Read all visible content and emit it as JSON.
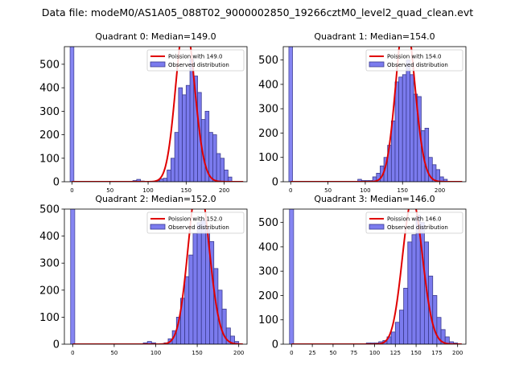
{
  "figure": {
    "suptitle": "Data file: modeM0/AS1A05_088T02_9000002850_19266cztM0_level2_quad_clean.evt",
    "colors": {
      "bars": "#7b7bee",
      "bar_edge": "#3b3b8e",
      "curve": "#e00000"
    }
  },
  "chart_data": [
    {
      "type": "bar",
      "title": "Quadrant 0: Median=149.0",
      "median": 149.0,
      "legend": [
        "Poission with 149.0",
        "Observed distribution"
      ],
      "legend_loc": "upper right",
      "xlim": [
        -10,
        230
      ],
      "ylim": [
        0,
        575
      ],
      "xticks": [
        0,
        50,
        100,
        150,
        200
      ],
      "yticks": [
        0,
        100,
        200,
        300,
        400,
        500
      ],
      "spike": {
        "x": 0,
        "value": 575
      },
      "bin_edges": [
        110,
        115,
        120,
        125,
        130,
        135,
        140,
        145,
        150,
        155,
        160,
        165,
        170,
        175,
        180,
        185,
        190,
        195,
        200,
        205,
        210
      ],
      "values": [
        5,
        12,
        15,
        50,
        100,
        210,
        400,
        370,
        410,
        520,
        450,
        380,
        265,
        300,
        210,
        200,
        120,
        100,
        50,
        20,
        10
      ],
      "low_counts": [
        [
          80,
          5
        ],
        [
          85,
          10
        ],
        [
          90,
          3
        ]
      ]
    },
    {
      "type": "bar",
      "title": "Quadrant 1: Median=154.0",
      "median": 154.0,
      "legend": [
        "Poission with 154.0",
        "Observed distribution"
      ],
      "legend_loc": "upper right",
      "xlim": [
        -10,
        235
      ],
      "ylim": [
        0,
        555
      ],
      "xticks": [
        0,
        50,
        100,
        150,
        200
      ],
      "yticks": [
        0,
        100,
        200,
        300,
        400,
        500
      ],
      "spike": {
        "x": 0,
        "value": 555
      },
      "bin_edges": [
        90,
        95,
        100,
        105,
        110,
        115,
        120,
        125,
        130,
        135,
        140,
        145,
        150,
        155,
        160,
        165,
        170,
        175,
        180,
        185,
        190,
        195,
        200,
        205,
        210
      ],
      "values": [
        10,
        5,
        5,
        5,
        20,
        35,
        65,
        100,
        150,
        250,
        410,
        430,
        440,
        500,
        440,
        360,
        350,
        210,
        220,
        100,
        70,
        50,
        20,
        10
      ],
      "low_counts": []
    },
    {
      "type": "bar",
      "title": "Quadrant 2: Median=152.0",
      "median": 152.0,
      "legend": [
        "Poission with 152.0",
        "Observed distribution"
      ],
      "legend_loc": "upper right",
      "xlim": [
        -10,
        210
      ],
      "ylim": [
        0,
        500
      ],
      "xticks": [
        0,
        50,
        100,
        150,
        200
      ],
      "yticks": [
        0,
        100,
        200,
        300,
        400,
        500
      ],
      "spike": {
        "x": 0,
        "value": 500
      },
      "bin_edges": [
        110,
        115,
        120,
        125,
        130,
        135,
        140,
        145,
        150,
        155,
        160,
        165,
        170,
        175,
        180,
        185,
        190,
        195,
        200
      ],
      "values": [
        5,
        20,
        50,
        100,
        170,
        250,
        330,
        410,
        450,
        460,
        430,
        380,
        280,
        200,
        130,
        60,
        30,
        10
      ],
      "low_counts": [
        [
          85,
          5
        ],
        [
          90,
          10
        ],
        [
          95,
          5
        ]
      ]
    },
    {
      "type": "bar",
      "title": "Quadrant 3: Median=146.0",
      "median": 146.0,
      "legend": [
        "Poission with 146.0",
        "Observed distribution"
      ],
      "legend_loc": "upper right",
      "xlim": [
        -10,
        210
      ],
      "ylim": [
        0,
        555
      ],
      "xticks": [
        0,
        25,
        50,
        75,
        100,
        125,
        150,
        175,
        200
      ],
      "yticks": [
        0,
        100,
        200,
        300,
        400,
        500
      ],
      "spike": {
        "x": 0,
        "value": 555
      },
      "bin_edges": [
        90,
        95,
        100,
        105,
        110,
        115,
        120,
        125,
        130,
        135,
        140,
        145,
        150,
        155,
        160,
        165,
        170,
        175,
        180,
        185,
        190,
        195,
        200
      ],
      "values": [
        5,
        5,
        5,
        10,
        15,
        30,
        50,
        90,
        140,
        230,
        420,
        450,
        530,
        500,
        420,
        280,
        200,
        110,
        60,
        30,
        10,
        5
      ],
      "low_counts": []
    }
  ]
}
